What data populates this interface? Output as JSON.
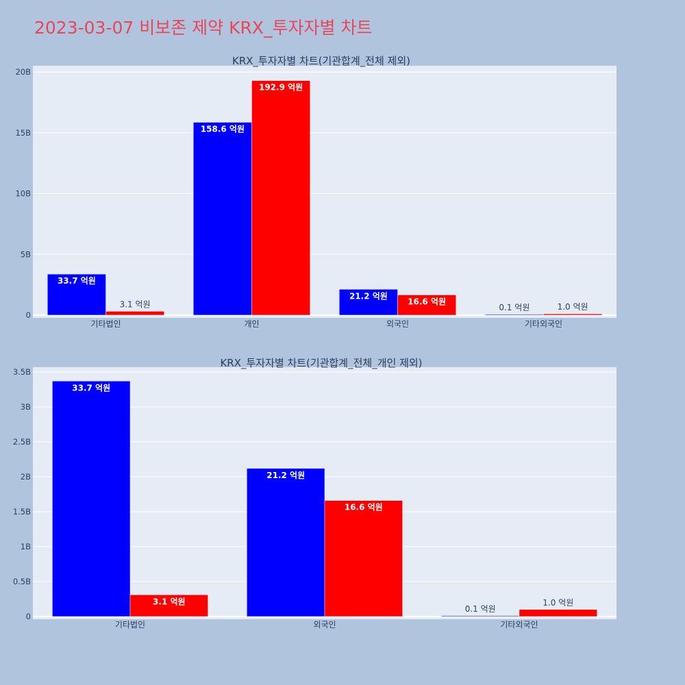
{
  "page_title": "2023-03-07 비보존 제약 KRX_투자자별 차트",
  "colors": {
    "page_background": "#b0c4de",
    "plot_background": "#e5ecf6",
    "grid": "#ffffff",
    "title": "#e8475a",
    "text": "#2a3f5f",
    "series_blue": "#0000ff",
    "series_red": "#ff0000"
  },
  "chart_data": [
    {
      "type": "bar",
      "title": "KRX_투자자별 차트(기관합계_전체 제외)",
      "categories": [
        "기타법인",
        "개인",
        "외국인",
        "기타외국인"
      ],
      "ylim": [
        0,
        20400000000
      ],
      "yticks": [
        0,
        5000000000,
        10000000000,
        15000000000,
        20000000000
      ],
      "ytick_labels": [
        "0",
        "5B",
        "10B",
        "15B",
        "20B"
      ],
      "grid": true,
      "legend": "none",
      "series": [
        {
          "color": "#0000ff",
          "values": [
            3370000000,
            15860000000,
            2120000000,
            10000000
          ],
          "labels": [
            "33.7 억원",
            "158.6 억원",
            "21.2 억원",
            "0.1 억원"
          ]
        },
        {
          "color": "#ff0000",
          "values": [
            310000000,
            19290000000,
            1660000000,
            100000000
          ],
          "labels": [
            "3.1 억원",
            "192.9 억원",
            "16.6 억원",
            "1.0 억원"
          ]
        }
      ]
    },
    {
      "type": "bar",
      "title": "KRX_투자자별 차트(기관합계_전체_개인 제외)",
      "categories": [
        "기타법인",
        "외국인",
        "기타외국인"
      ],
      "ylim": [
        0,
        3550000000
      ],
      "yticks": [
        0,
        500000000,
        1000000000,
        1500000000,
        2000000000,
        2500000000,
        3000000000,
        3500000000
      ],
      "ytick_labels": [
        "0",
        "0.5B",
        "1B",
        "1.5B",
        "2B",
        "2.5B",
        "3B",
        "3.5B"
      ],
      "grid": true,
      "legend": "none",
      "series": [
        {
          "color": "#0000ff",
          "values": [
            3370000000,
            2120000000,
            10000000
          ],
          "labels": [
            "33.7 억원",
            "21.2 억원",
            "0.1 억원"
          ]
        },
        {
          "color": "#ff0000",
          "values": [
            310000000,
            1660000000,
            100000000
          ],
          "labels": [
            "3.1 억원",
            "16.6 억원",
            "1.0 억원"
          ]
        }
      ]
    }
  ]
}
